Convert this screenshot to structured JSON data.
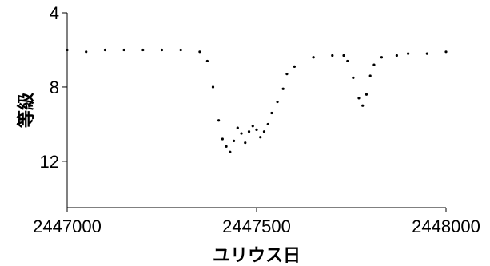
{
  "chart_data": {
    "type": "scatter",
    "title": "",
    "xlabel": "ユリウス日",
    "ylabel": "等級",
    "xlim": [
      2447000,
      2448000
    ],
    "ylim": [
      14.5,
      4
    ],
    "y_inverted": true,
    "x_ticks": [
      2447000,
      2447500,
      2448000
    ],
    "x_tick_labels": [
      "2447000",
      "2447500",
      "2448000"
    ],
    "y_ticks": [
      4,
      8,
      12
    ],
    "y_tick_labels": [
      "4",
      "8",
      "12"
    ],
    "grid": false,
    "legend": "none",
    "point_color": "#000000",
    "series": [
      {
        "x": [
          2447000,
          2447050,
          2447100,
          2447150,
          2447200,
          2447250,
          2447300,
          2447350,
          2447370,
          2447385,
          2447400,
          2447410,
          2447420,
          2447430,
          2447440,
          2447450,
          2447460,
          2447470,
          2447480,
          2447490,
          2447500,
          2447510,
          2447520,
          2447530,
          2447540,
          2447555,
          2447570,
          2447580,
          2447600,
          2447650,
          2447700,
          2447730,
          2447740,
          2447755,
          2447770,
          2447780,
          2447790,
          2447800,
          2447810,
          2447830,
          2447870,
          2447900,
          2447950,
          2448000
        ],
        "y": [
          6.0,
          6.1,
          6.0,
          6.0,
          6.0,
          6.0,
          6.0,
          6.1,
          6.6,
          8.0,
          9.8,
          10.8,
          11.2,
          11.5,
          10.9,
          10.2,
          10.5,
          11.0,
          10.4,
          10.1,
          10.3,
          10.7,
          10.4,
          10.0,
          9.4,
          8.8,
          8.1,
          7.3,
          6.9,
          6.4,
          6.3,
          6.3,
          6.6,
          7.5,
          8.6,
          9.0,
          8.4,
          7.4,
          6.8,
          6.4,
          6.3,
          6.2,
          6.2,
          6.1
        ]
      }
    ]
  }
}
